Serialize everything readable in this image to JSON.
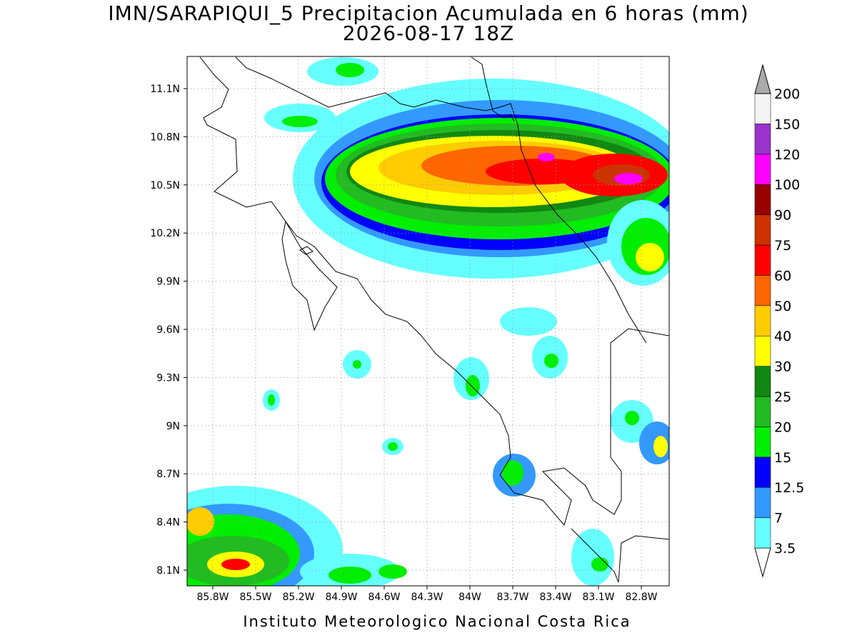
{
  "map": {
    "title": "IMN/SARAPIQUI_5 Precipitacion Acumulada en 6 horas (mm)",
    "subtitle": "2026-08-17 18Z",
    "lon_ticks": [
      "85.8W",
      "85.5W",
      "85.2W",
      "84.9W",
      "84.6W",
      "84.3W",
      "84W",
      "83.7W",
      "83.4W",
      "83.1W",
      "82.8W"
    ],
    "lat_ticks": [
      "11.1N",
      "10.8N",
      "10.5N",
      "10.2N",
      "9.9N",
      "9.6N",
      "9.3N",
      "9N",
      "8.7N",
      "8.4N",
      "8.1N"
    ],
    "colorbar": {
      "levels": [
        3.5,
        7,
        12.5,
        15,
        20,
        25,
        30,
        40,
        50,
        60,
        75,
        90,
        100,
        120,
        150,
        200
      ],
      "colors": [
        "#ffffff",
        "#66ffff",
        "#3399ff",
        "#0000ff",
        "#00ee00",
        "#22bb22",
        "#118811",
        "#ffff00",
        "#ffcc00",
        "#ff6600",
        "#ff0000",
        "#cc3300",
        "#990000",
        "#ff00ff",
        "#9933cc",
        "#f4f4f4",
        "#aaaaaa"
      ]
    },
    "footer": "Instituto Meteorologico Nacional Costa Rica"
  }
}
